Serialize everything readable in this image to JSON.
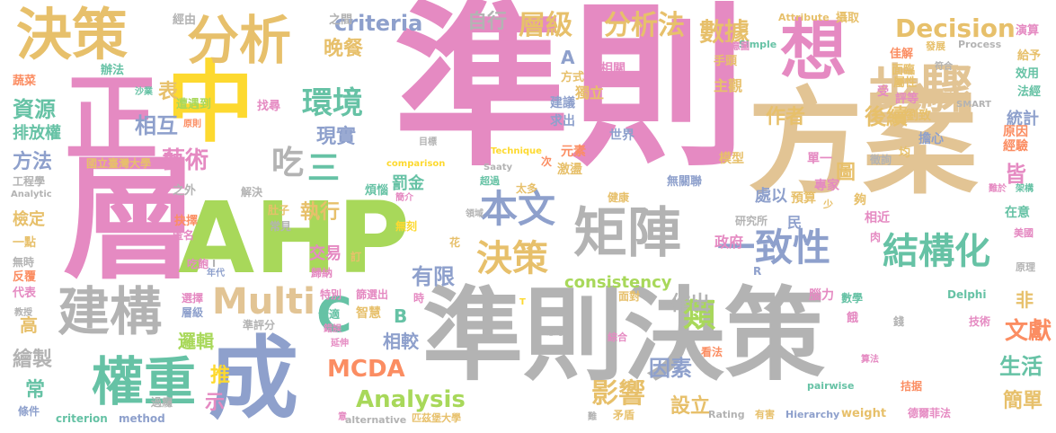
{
  "palette": {
    "pink": "#e58ac2",
    "gold": "#e7c06b",
    "green": "#a8d85a",
    "blue": "#8ea0cc",
    "gray": "#b3b3b3",
    "teal": "#66c2a5",
    "orange": "#fb8d62",
    "tan": "#e2c494",
    "yellow": "#fdd92f"
  },
  "words": [
    {
      "text": "準則",
      "color": "pink"
    },
    {
      "text": "方案",
      "color": "tan"
    },
    {
      "text": "層",
      "color": "pink"
    },
    {
      "text": "AHP",
      "color": "green"
    },
    {
      "text": "準則決策",
      "color": "gray"
    },
    {
      "text": "中",
      "color": "yellow"
    },
    {
      "text": "正",
      "color": "pink"
    },
    {
      "text": "成",
      "color": "blue"
    },
    {
      "text": "想",
      "color": "pink"
    },
    {
      "text": "決策",
      "color": "gold"
    },
    {
      "text": "分析",
      "color": "gold"
    },
    {
      "text": "步驟",
      "color": "tan"
    },
    {
      "text": "矩陣",
      "color": "gray"
    },
    {
      "text": "權重",
      "color": "teal"
    },
    {
      "text": "建構",
      "color": "gray"
    },
    {
      "text": "Multi",
      "color": "tan"
    },
    {
      "text": "一致性",
      "color": "blue"
    },
    {
      "text": "結構化",
      "color": "teal"
    },
    {
      "text": "本文",
      "color": "blue"
    },
    {
      "text": "決策",
      "color": "gold"
    },
    {
      "text": "C",
      "color": "teal"
    },
    {
      "text": "環境",
      "color": "teal"
    },
    {
      "text": "吃",
      "color": "gray"
    },
    {
      "text": "三",
      "color": "teal"
    },
    {
      "text": "層級",
      "color": "gold"
    },
    {
      "text": "分析法",
      "color": "gold"
    },
    {
      "text": "數據",
      "color": "gold"
    },
    {
      "text": "Decision",
      "color": "gold"
    },
    {
      "text": "criteria",
      "color": "blue"
    },
    {
      "text": "自行",
      "color": "gray"
    },
    {
      "text": "晚餐",
      "color": "gold"
    },
    {
      "text": "相互",
      "color": "blue"
    },
    {
      "text": "現實",
      "color": "blue"
    },
    {
      "text": "資源",
      "color": "teal"
    },
    {
      "text": "藝術",
      "color": "pink"
    },
    {
      "text": "方法",
      "color": "blue"
    },
    {
      "text": "MCDA",
      "color": "orange"
    },
    {
      "text": "Analysis",
      "color": "green"
    },
    {
      "text": "影響",
      "color": "gold"
    },
    {
      "text": "類",
      "color": "green"
    },
    {
      "text": "因素",
      "color": "blue"
    },
    {
      "text": "文獻",
      "color": "orange"
    },
    {
      "text": "生活",
      "color": "teal"
    },
    {
      "text": "簡單",
      "color": "gold"
    },
    {
      "text": "有限",
      "color": "blue"
    },
    {
      "text": "作出",
      "color": "gray"
    },
    {
      "text": "作者",
      "color": "gold"
    },
    {
      "text": "後續",
      "color": "gold"
    },
    {
      "text": "皆",
      "color": "pink"
    },
    {
      "text": "consistency",
      "color": "green"
    },
    {
      "text": "執行",
      "color": "gold"
    },
    {
      "text": "交易",
      "color": "pink"
    },
    {
      "text": "設立",
      "color": "gold"
    },
    {
      "text": "繪製",
      "color": "gray"
    },
    {
      "text": "邏輯",
      "color": "green"
    },
    {
      "text": "相較",
      "color": "blue"
    },
    {
      "text": "處以",
      "color": "blue"
    },
    {
      "text": "統計",
      "color": "blue"
    },
    {
      "text": "表",
      "color": "gold"
    },
    {
      "text": "排放權",
      "color": "teal"
    },
    {
      "text": "檢定",
      "color": "gold"
    },
    {
      "text": "高",
      "color": "gold"
    },
    {
      "text": "常",
      "color": "teal"
    },
    {
      "text": "B",
      "color": "teal"
    },
    {
      "text": "A",
      "color": "blue"
    },
    {
      "text": "推",
      "color": "yellow"
    },
    {
      "text": "示",
      "color": "pink"
    },
    {
      "text": "非",
      "color": "gold"
    },
    {
      "text": "圖",
      "color": "gold"
    },
    {
      "text": "主觀",
      "color": "gold"
    },
    {
      "text": "獨立",
      "color": "gold"
    },
    {
      "text": "罰金",
      "color": "teal"
    },
    {
      "text": "政府",
      "color": "pink"
    },
    {
      "text": "世界",
      "color": "blue"
    },
    {
      "text": "建議",
      "color": "blue"
    },
    {
      "text": "求出",
      "color": "blue"
    },
    {
      "text": "元素",
      "color": "orange"
    },
    {
      "text": "激盪",
      "color": "gold"
    },
    {
      "text": "單一",
      "color": "pink"
    },
    {
      "text": "模型",
      "color": "gold"
    },
    {
      "text": "預算",
      "color": "gold"
    },
    {
      "text": "專家",
      "color": "pink"
    },
    {
      "text": "智慧",
      "color": "gold"
    },
    {
      "text": "民",
      "color": "blue"
    },
    {
      "text": "相近",
      "color": "pink"
    },
    {
      "text": "在意",
      "color": "teal"
    },
    {
      "text": "原因",
      "color": "orange"
    },
    {
      "text": "經驗",
      "color": "orange"
    },
    {
      "text": "擔心",
      "color": "blue"
    },
    {
      "text": "劉致",
      "color": "gold"
    },
    {
      "text": "效用",
      "color": "teal"
    },
    {
      "text": "給予",
      "color": "gold"
    },
    {
      "text": "演算",
      "color": "pink"
    },
    {
      "text": "法經",
      "color": "teal"
    },
    {
      "text": "評等",
      "color": "pink"
    },
    {
      "text": "屬性",
      "color": "gold"
    },
    {
      "text": "受",
      "color": "pink"
    },
    {
      "text": "面臨",
      "color": "gold"
    },
    {
      "text": "佳解",
      "color": "orange"
    },
    {
      "text": "攝取",
      "color": "gold"
    },
    {
      "text": "Attribute",
      "color": "gold"
    },
    {
      "text": "Simple",
      "color": "teal"
    },
    {
      "text": "Process",
      "color": "gray"
    },
    {
      "text": "發展",
      "color": "gold"
    },
    {
      "text": "手頭",
      "color": "gold"
    },
    {
      "text": "相關",
      "color": "pink"
    },
    {
      "text": "方式",
      "color": "gold"
    },
    {
      "text": "之間",
      "color": "gray"
    },
    {
      "text": "經由",
      "color": "gray"
    },
    {
      "text": "辦法",
      "color": "teal"
    },
    {
      "text": "蔬菜",
      "color": "orange"
    },
    {
      "text": "遭遇到",
      "color": "green"
    },
    {
      "text": "找尋",
      "color": "pink"
    },
    {
      "text": "國立臺灣大學",
      "color": "gold"
    },
    {
      "text": "工程學",
      "color": "gray"
    },
    {
      "text": "之外",
      "color": "gray"
    },
    {
      "text": "解決",
      "color": "gray"
    },
    {
      "text": "煩惱",
      "color": "teal"
    },
    {
      "text": "超過",
      "color": "teal"
    },
    {
      "text": "太多",
      "color": "gold"
    },
    {
      "text": "無關聯",
      "color": "blue"
    },
    {
      "text": "健康",
      "color": "gold"
    },
    {
      "text": "抉擇",
      "color": "orange"
    },
    {
      "text": "匿名",
      "color": "pink"
    },
    {
      "text": "一點",
      "color": "gold"
    },
    {
      "text": "無時",
      "color": "gray"
    },
    {
      "text": "反覆",
      "color": "orange"
    },
    {
      "text": "代表",
      "color": "pink"
    },
    {
      "text": "吃飽",
      "color": "pink"
    },
    {
      "text": "肚子",
      "color": "gold"
    },
    {
      "text": "常見",
      "color": "gray"
    },
    {
      "text": "無刻",
      "color": "yellow"
    },
    {
      "text": "歸納",
      "color": "pink"
    },
    {
      "text": "特別",
      "color": "pink"
    },
    {
      "text": "篩選出",
      "color": "pink"
    },
    {
      "text": "選擇",
      "color": "pink"
    },
    {
      "text": "層級",
      "color": "blue"
    },
    {
      "text": "準評分",
      "color": "gray"
    },
    {
      "text": "合適",
      "color": "teal"
    },
    {
      "text": "面對",
      "color": "gold"
    },
    {
      "text": "腦力",
      "color": "pink"
    },
    {
      "text": "數學",
      "color": "teal"
    },
    {
      "text": "研究所",
      "color": "gray"
    },
    {
      "text": "夠",
      "color": "gold"
    },
    {
      "text": "肉",
      "color": "pink"
    },
    {
      "text": "美國",
      "color": "pink"
    },
    {
      "text": "原理",
      "color": "gray"
    },
    {
      "text": "Delphi",
      "color": "teal"
    },
    {
      "text": "技術",
      "color": "pink"
    },
    {
      "text": "餓",
      "color": "pink"
    },
    {
      "text": "錢",
      "color": "gray"
    },
    {
      "text": "看法",
      "color": "orange"
    },
    {
      "text": "過癮",
      "color": "gray"
    },
    {
      "text": "條件",
      "color": "blue"
    },
    {
      "text": "criterion",
      "color": "teal"
    },
    {
      "text": "method",
      "color": "blue"
    },
    {
      "text": "alternative",
      "color": "gray"
    },
    {
      "text": "匹茲堡大學",
      "color": "gold"
    },
    {
      "text": "矛盾",
      "color": "gold"
    },
    {
      "text": "Rating",
      "color": "gray"
    },
    {
      "text": "有害",
      "color": "gold"
    },
    {
      "text": "Hierarchy",
      "color": "blue"
    },
    {
      "text": "weight",
      "color": "gold"
    },
    {
      "text": "德爾菲法",
      "color": "pink"
    },
    {
      "text": "pairwise",
      "color": "teal"
    },
    {
      "text": "拮据",
      "color": "orange"
    },
    {
      "text": "綜合",
      "color": "pink"
    },
    {
      "text": "思考",
      "color": "gray"
    },
    {
      "text": "Analytic",
      "color": "gray"
    },
    {
      "text": "Saaty",
      "color": "gray"
    },
    {
      "text": "SMART",
      "color": "gray"
    },
    {
      "text": "Technique",
      "color": "yellow"
    },
    {
      "text": "comparison",
      "color": "yellow"
    },
    {
      "text": "架構",
      "color": "teal"
    },
    {
      "text": "難於",
      "color": "pink"
    },
    {
      "text": "均",
      "color": "gold"
    },
    {
      "text": "徵詢",
      "color": "gray"
    },
    {
      "text": "少",
      "color": "gold"
    },
    {
      "text": "目標",
      "color": "gray"
    },
    {
      "text": "沙業",
      "color": "teal"
    },
    {
      "text": "原則",
      "color": "orange"
    },
    {
      "text": "I",
      "color": "gray"
    },
    {
      "text": "R",
      "color": "blue"
    },
    {
      "text": "L",
      "color": "gray"
    },
    {
      "text": "T",
      "color": "yellow"
    },
    {
      "text": "次",
      "color": "orange"
    },
    {
      "text": "示意圖",
      "color": "pink"
    },
    {
      "text": "符合",
      "color": "gray"
    },
    {
      "text": "年代",
      "color": "blue"
    },
    {
      "text": "訂",
      "color": "gold"
    },
    {
      "text": "時",
      "color": "pink"
    },
    {
      "text": "簡介",
      "color": "pink"
    },
    {
      "text": "領域",
      "color": "gray"
    },
    {
      "text": "花",
      "color": "gold"
    },
    {
      "text": "錯誤",
      "color": "pink"
    },
    {
      "text": "延伸",
      "color": "pink"
    },
    {
      "text": "意",
      "color": "pink"
    },
    {
      "text": "難",
      "color": "gray"
    },
    {
      "text": "教授",
      "color": "gray"
    },
    {
      "text": "算法",
      "color": "pink"
    }
  ]
}
